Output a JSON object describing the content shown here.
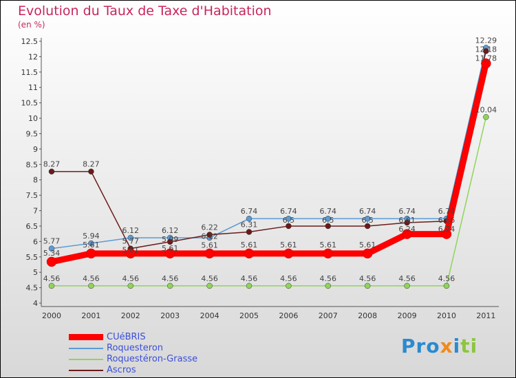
{
  "chart_data": {
    "type": "line",
    "title": "Evolution du Taux de Taxe d'Habitation",
    "subtitle": "(en %)",
    "x": [
      "2000",
      "2001",
      "2002",
      "2003",
      "2004",
      "2005",
      "2006",
      "2007",
      "2008",
      "2009",
      "2010",
      "2011"
    ],
    "yticks": [
      "4",
      "4.5",
      "5",
      "5.5",
      "6",
      "6.5",
      "7",
      "7.5",
      "8",
      "8.5",
      "9",
      "9.5",
      "10",
      "10.5",
      "11",
      "11.5",
      "12",
      "12.5"
    ],
    "ylim": [
      4,
      12.5
    ],
    "series": [
      {
        "name": "Roquesteron",
        "color": "#5b9bd5",
        "values": [
          5.77,
          5.94,
          6.12,
          6.12,
          6.12,
          6.74,
          6.74,
          6.74,
          6.74,
          6.74,
          6.74,
          12.29
        ]
      },
      {
        "name": "Roquestéron-Grasse",
        "color": "#8fd45a",
        "values": [
          4.56,
          4.56,
          4.56,
          4.56,
          4.56,
          4.56,
          4.56,
          4.56,
          4.56,
          4.56,
          4.56,
          10.04
        ]
      },
      {
        "name": "Ascros",
        "color": "#6b1a1a",
        "values": [
          8.27,
          8.27,
          5.77,
          5.99,
          6.22,
          6.31,
          6.5,
          6.5,
          6.5,
          6.61,
          6.66,
          12.18
        ]
      },
      {
        "name": "CUéBRIS",
        "color": "#ff0000",
        "values": [
          5.34,
          5.61,
          5.61,
          5.61,
          5.61,
          5.61,
          5.61,
          5.61,
          5.61,
          6.24,
          6.24,
          11.78
        ]
      }
    ],
    "legend_order": [
      "CUéBRIS",
      "Roquesteron",
      "Roquestéron-Grasse",
      "Ascros"
    ]
  },
  "logo": "Proxiti"
}
